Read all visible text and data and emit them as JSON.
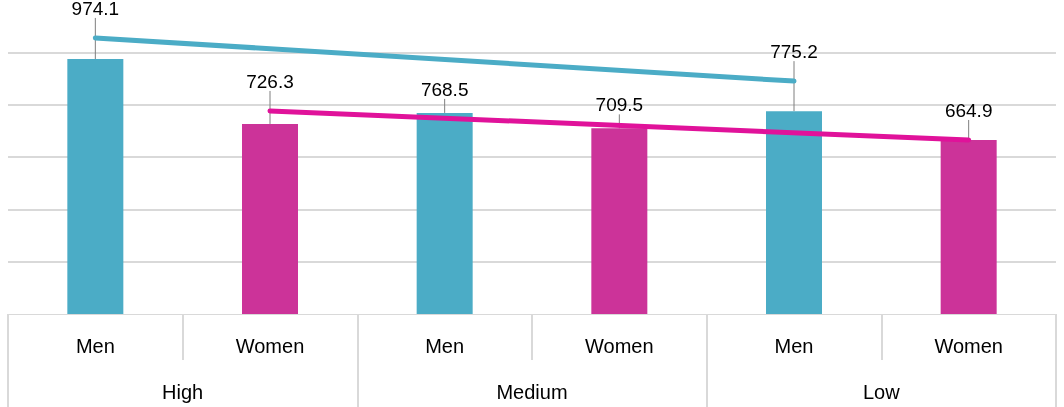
{
  "chart_data": {
    "type": "bar",
    "categories": [
      "Men",
      "Women",
      "Men",
      "Women",
      "Men",
      "Women"
    ],
    "annotations": [
      "High",
      "Medium",
      "Low"
    ],
    "values": [
      974.1,
      726.3,
      768.5,
      709.5,
      775.2,
      664.9
    ],
    "colors": [
      "#4bacc6",
      "#cc3399",
      "#4bacc6",
      "#cc3399",
      "#4bacc6",
      "#cc3399"
    ],
    "series": [
      {
        "type": "line",
        "color": "#4bacc6",
        "values": [
          1055,
          null,
          null,
          null,
          890,
          null
        ]
      },
      {
        "type": "line",
        "color": "#e0129a",
        "values": [
          null,
          776,
          null,
          null,
          null,
          665
        ]
      }
    ],
    "value_labels": [
      "974.1",
      "726.3",
      "768.5",
      "709.5",
      "775.2",
      "664.9"
    ],
    "marker": "none",
    "line_style": "solid",
    "yticks": [
      {
        "value": 200,
        "label": null
      },
      {
        "value": 400,
        "label": null
      },
      {
        "value": 600,
        "label": null
      },
      {
        "value": 800,
        "label": null
      },
      {
        "value": 1000,
        "label": null
      }
    ],
    "grid": "y",
    "tick_labels": "x"
  }
}
